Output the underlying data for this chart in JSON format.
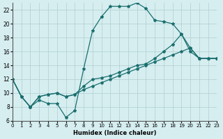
{
  "xlabel": "Humidex (Indice chaleur)",
  "ylabel": "",
  "bg_color": "#d6eef0",
  "grid_color": "#b0cdd0",
  "line_color": "#1a6e6e",
  "xlim": [
    0,
    23
  ],
  "ylim": [
    6,
    23
  ],
  "yticks": [
    6,
    8,
    10,
    12,
    14,
    16,
    18,
    20,
    22
  ],
  "xticks": [
    0,
    1,
    2,
    3,
    4,
    5,
    6,
    7,
    8,
    9,
    10,
    11,
    12,
    13,
    14,
    15,
    16,
    17,
    18,
    19,
    20,
    21,
    22,
    23
  ],
  "lines": [
    {
      "x": [
        0,
        1,
        2,
        3,
        4,
        5,
        6,
        7,
        8,
        9,
        10,
        11,
        12,
        13,
        14,
        15,
        16,
        17,
        18,
        19,
        20,
        21,
        22,
        23
      ],
      "y": [
        12,
        9.5,
        8,
        9,
        8.5,
        8.5,
        6.5,
        7.5,
        13.5,
        19,
        21,
        22.5,
        22.5,
        22.5,
        23,
        22.2,
        20.5,
        20.3,
        20,
        18.5,
        16.5,
        15,
        15,
        15
      ]
    },
    {
      "x": [
        0,
        1,
        2,
        3,
        4,
        5,
        6,
        7,
        8,
        9,
        10,
        11,
        12,
        13,
        14,
        15,
        16,
        17,
        18,
        19,
        20,
        21,
        22,
        23
      ],
      "y": [
        12,
        9.5,
        8,
        9.5,
        9.8,
        10,
        9.5,
        9.8,
        11,
        12,
        12.2,
        12.5,
        13,
        13.5,
        14,
        14.2,
        15,
        16,
        17,
        18.5,
        16,
        15,
        15,
        15
      ]
    },
    {
      "x": [
        0,
        1,
        2,
        3,
        4,
        5,
        6,
        7,
        8,
        9,
        10,
        11,
        12,
        13,
        14,
        15,
        16,
        17,
        18,
        19,
        20,
        21,
        22,
        23
      ],
      "y": [
        12,
        9.5,
        8,
        9.5,
        9.8,
        10,
        9.5,
        9.8,
        10.5,
        11,
        11.5,
        12,
        12.5,
        13,
        13.5,
        14,
        14.5,
        15,
        15.5,
        16,
        16.5,
        15,
        15,
        15
      ]
    }
  ]
}
